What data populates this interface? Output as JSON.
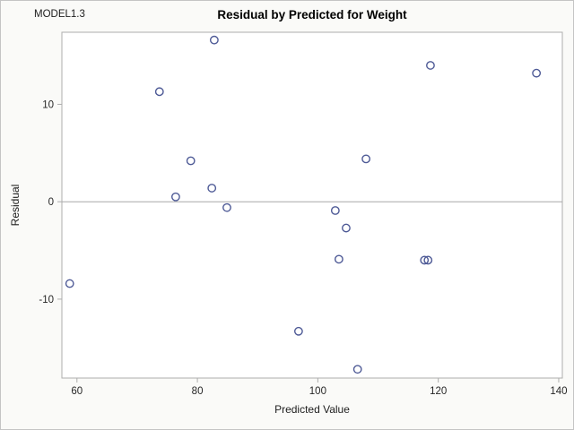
{
  "page": {
    "model_label": "MODEL1.3"
  },
  "chart_data": {
    "type": "scatter",
    "title": "Residual by Predicted for Weight",
    "xlabel": "Predicted Value",
    "ylabel": "Residual",
    "xlim": [
      57.5,
      140.6
    ],
    "ylim": [
      -18.1,
      17.4
    ],
    "x_ticks": [
      60,
      80,
      100,
      120,
      140
    ],
    "y_ticks": [
      10,
      0,
      -10
    ],
    "reference_line_y": 0,
    "grid": false,
    "legend": "none",
    "marker": "open-circle",
    "marker_color": "#4E5A96",
    "frame_color": "#ADADAD",
    "points": [
      {
        "x": 58.8,
        "y": -8.4
      },
      {
        "x": 73.7,
        "y": 11.3
      },
      {
        "x": 76.4,
        "y": 0.5
      },
      {
        "x": 78.9,
        "y": 4.2
      },
      {
        "x": 82.4,
        "y": 1.4
      },
      {
        "x": 82.8,
        "y": 16.6
      },
      {
        "x": 84.9,
        "y": -0.6
      },
      {
        "x": 96.8,
        "y": -13.3
      },
      {
        "x": 102.9,
        "y": -0.9
      },
      {
        "x": 103.5,
        "y": -5.9
      },
      {
        "x": 104.7,
        "y": -2.7
      },
      {
        "x": 106.6,
        "y": -17.2
      },
      {
        "x": 108.0,
        "y": 4.4
      },
      {
        "x": 117.7,
        "y": -6.0
      },
      {
        "x": 118.3,
        "y": -6.0
      },
      {
        "x": 118.7,
        "y": 14.0
      },
      {
        "x": 136.3,
        "y": 13.2
      }
    ]
  }
}
